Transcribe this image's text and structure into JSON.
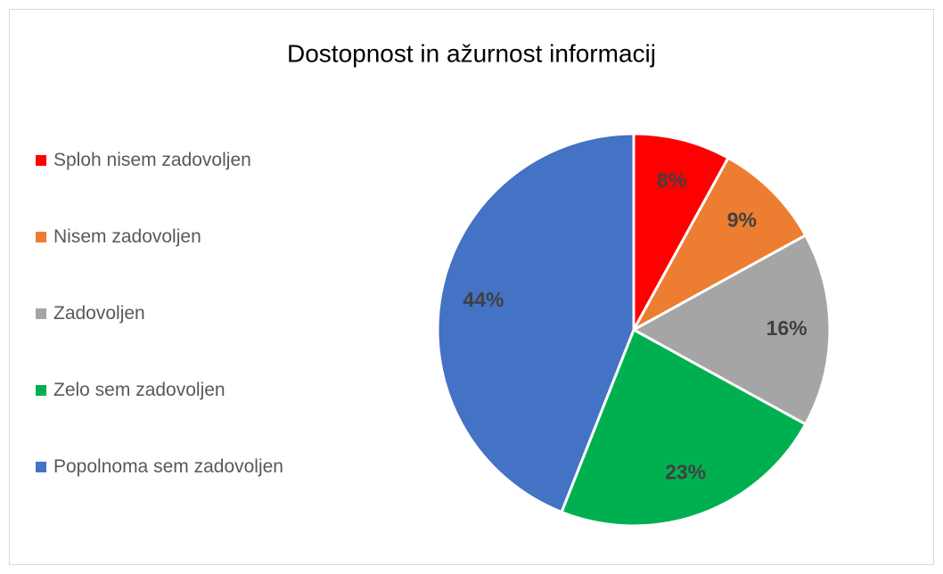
{
  "chart_data": {
    "type": "pie",
    "title": "Dostopnost in ažurnost informacij",
    "categories": [
      "Sploh nisem zadovoljen",
      "Nisem zadovoljen",
      "Zadovoljen",
      "Zelo sem zadovoljen",
      "Popolnoma sem zadovoljen"
    ],
    "values": [
      8,
      9,
      16,
      23,
      44
    ],
    "value_labels": [
      "8%",
      "9%",
      "16%",
      "23%",
      "44%"
    ],
    "colors": [
      "#ff0000",
      "#ed7d31",
      "#a5a5a5",
      "#00b050",
      "#4472c4"
    ],
    "legend": "left"
  }
}
